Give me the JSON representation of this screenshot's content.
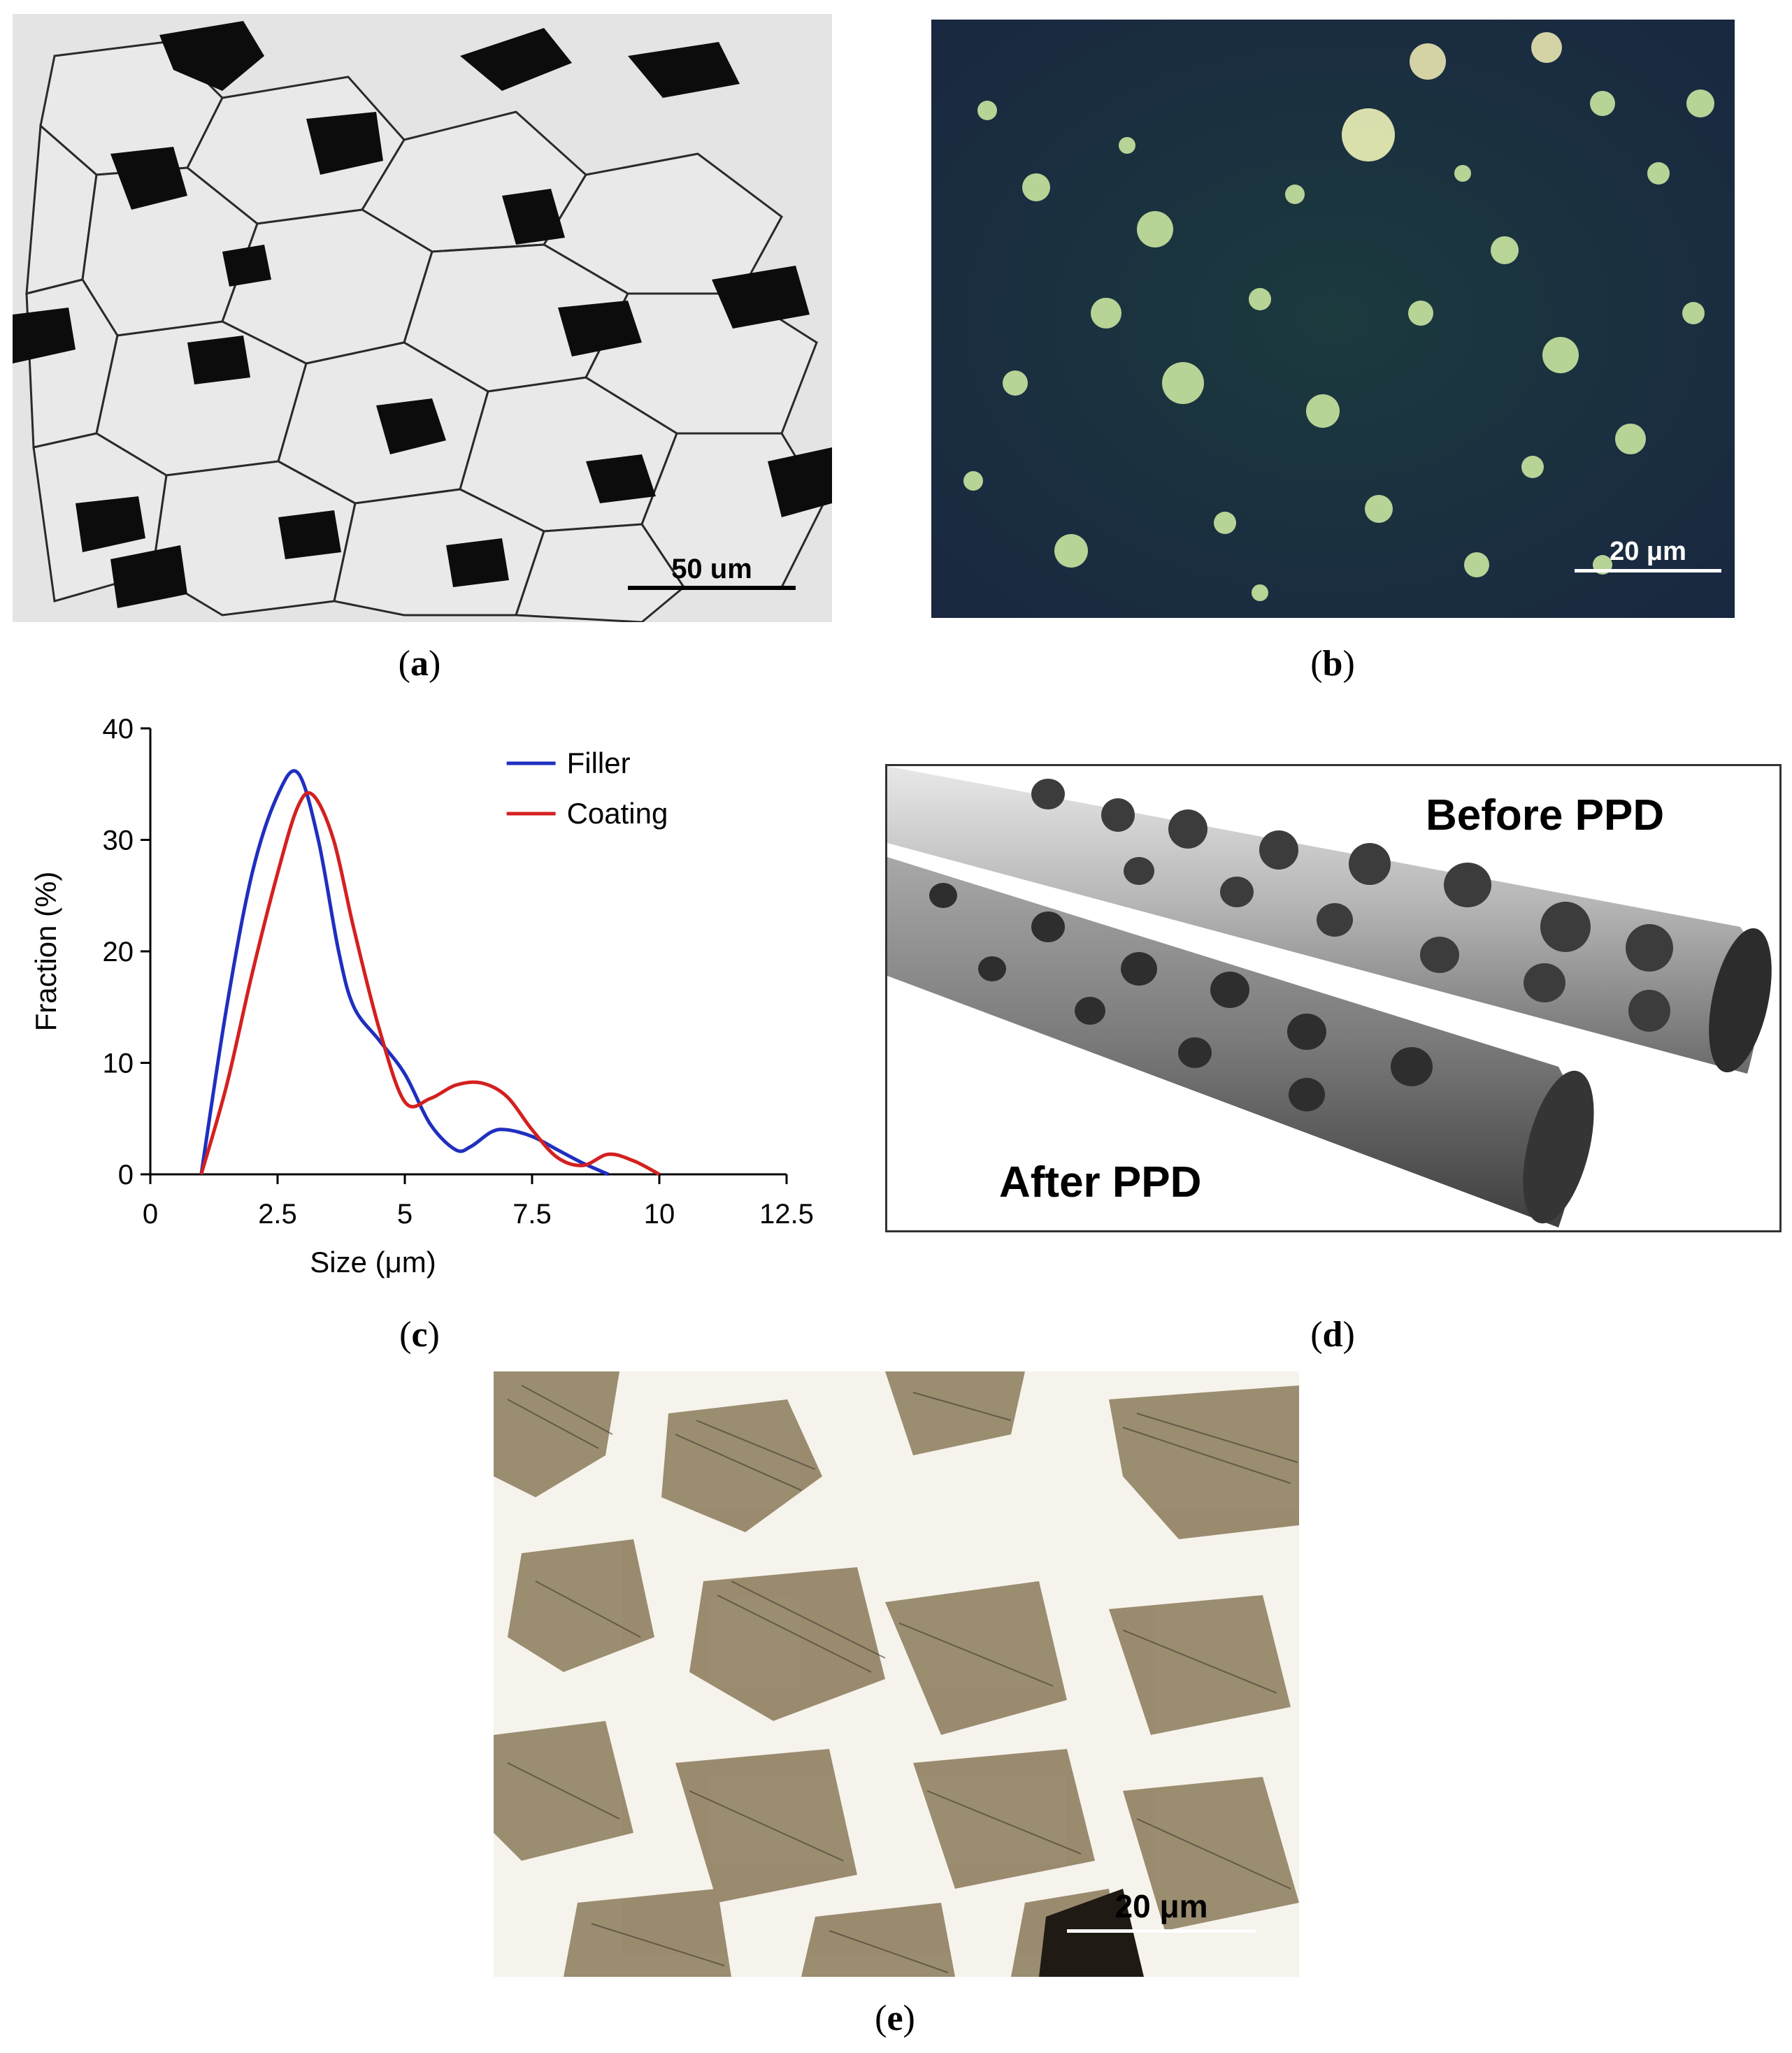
{
  "panels": {
    "a": {
      "label": "a",
      "scale_bar": "50 um",
      "colors": {
        "matrix": "#e6e6e6",
        "phase": "#0c0c0c",
        "boundary": "#2a2a2a"
      }
    },
    "b": {
      "label": "b",
      "scale_bar": "20 μm",
      "colors": {
        "background": "#172738",
        "particles": "#c9e6a0"
      }
    },
    "c": {
      "label": "c"
    },
    "d": {
      "label": "d",
      "before_label": "Before PPD",
      "after_label": "After PPD",
      "colors": {
        "rod": "#b8b8b8",
        "dimples": "#3c3c3c"
      }
    },
    "e": {
      "label": "e",
      "scale_bar": "20 μm",
      "colors": {
        "ferrite": "#f7f4ee",
        "bainite": "#8a7a5a"
      }
    }
  },
  "chart_data": {
    "type": "line",
    "xlabel": "Size (μm)",
    "ylabel": "Fraction (%)",
    "xlim": [
      0,
      12.5
    ],
    "ylim": [
      0,
      40
    ],
    "xticks": [
      "0",
      "2.5",
      "5",
      "7.5",
      "10",
      "12.5"
    ],
    "yticks": [
      "0",
      "10",
      "20",
      "30",
      "40"
    ],
    "legend_position": "top-right",
    "grid": false,
    "series": [
      {
        "name": "Filler",
        "color": "#1f2fbf",
        "x": [
          1.0,
          1.5,
          2.0,
          2.5,
          2.9,
          3.3,
          3.7,
          4.0,
          4.5,
          5.0,
          5.5,
          6.0,
          6.3,
          6.7,
          7.0,
          7.5,
          8.0,
          8.5,
          9.0
        ],
        "y": [
          0,
          15,
          27,
          34,
          36,
          30,
          20,
          15,
          12,
          9,
          4.5,
          2.2,
          2.5,
          3.8,
          4.0,
          3.4,
          2.2,
          1.0,
          0
        ]
      },
      {
        "name": "Coating",
        "color": "#d42020",
        "x": [
          1.0,
          1.5,
          2.0,
          2.5,
          2.9,
          3.2,
          3.6,
          4.0,
          4.5,
          5.0,
          5.5,
          6.0,
          6.5,
          7.0,
          7.5,
          8.0,
          8.5,
          9.0,
          9.5,
          10.0
        ],
        "y": [
          0,
          8,
          18,
          27,
          33,
          34,
          30,
          22,
          13,
          6.5,
          6.8,
          8.0,
          8.2,
          7.0,
          4.0,
          1.5,
          0.8,
          1.8,
          1.2,
          0
        ]
      }
    ]
  }
}
